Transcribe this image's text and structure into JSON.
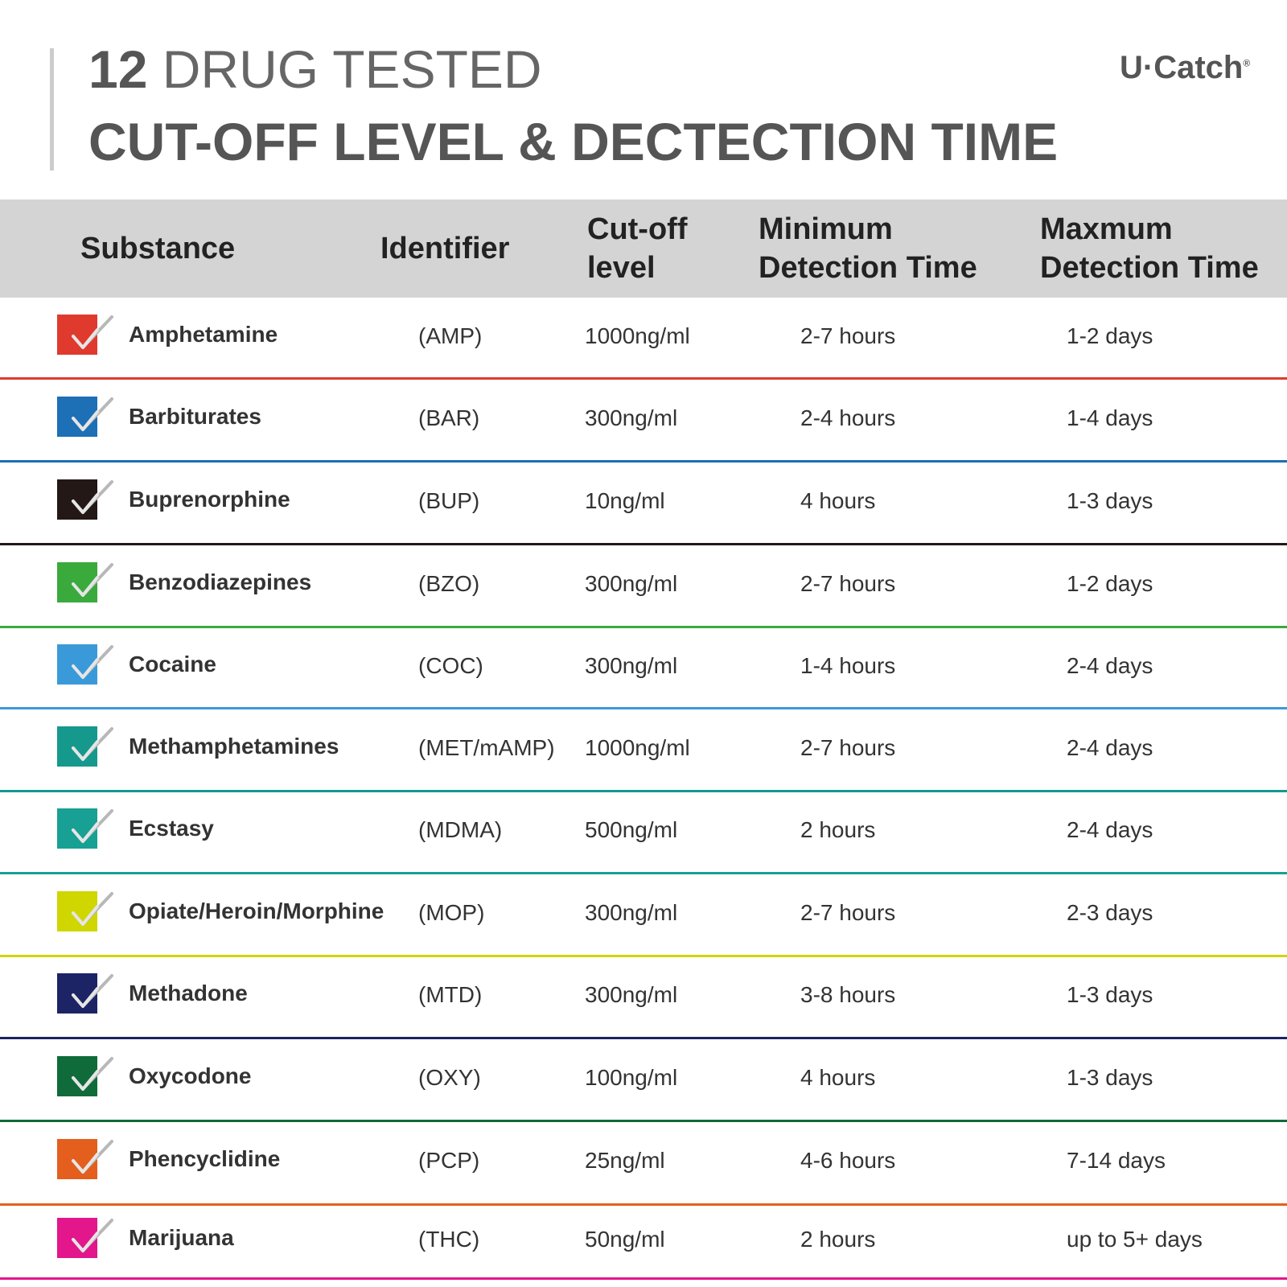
{
  "header": {
    "title_number": "12",
    "title_rest": "DRUG TESTED",
    "subtitle": "CUT-OFF LEVEL & DECTECTION TIME",
    "logo": "U·Catch",
    "logo_mark": "®"
  },
  "table": {
    "columns": [
      "Substance",
      "Identifier",
      "Cut-off level",
      "Minimum Detection Time",
      "Maxmum Detection Time"
    ],
    "rows": [
      {
        "substance": "Amphetamine",
        "identifier": "(AMP)",
        "cutoff": "1000ng/ml",
        "min": "2-7 hours",
        "max": "1-2 days",
        "color": "#e03a2f"
      },
      {
        "substance": "Barbiturates",
        "identifier": "(BAR)",
        "cutoff": "300ng/ml",
        "min": "2-4 hours",
        "max": "1-4 days",
        "color": "#1d6fb6"
      },
      {
        "substance": "Buprenorphine",
        "identifier": "(BUP)",
        "cutoff": "10ng/ml",
        "min": "4 hours",
        "max": "1-3 days",
        "color": "#231815"
      },
      {
        "substance": "Benzodiazepines",
        "identifier": "(BZO)",
        "cutoff": "300ng/ml",
        "min": "2-7 hours",
        "max": "1-2 days",
        "color": "#3aaa3c"
      },
      {
        "substance": "Cocaine",
        "identifier": "(COC)",
        "cutoff": "300ng/ml",
        "min": "1-4 hours",
        "max": "2-4 days",
        "color": "#3a9ad9"
      },
      {
        "substance": "Methamphetamines",
        "identifier": "(MET/mAMP)",
        "cutoff": "1000ng/ml",
        "min": "2-7 hours",
        "max": "2-4 days",
        "color": "#15998d"
      },
      {
        "substance": "Ecstasy",
        "identifier": "(MDMA)",
        "cutoff": "500ng/ml",
        "min": "2 hours",
        "max": "2-4 days",
        "color": "#17a093"
      },
      {
        "substance": "Opiate/Heroin/Morphine",
        "identifier": "(MOP)",
        "cutoff": "300ng/ml",
        "min": "2-7 hours",
        "max": "2-3 days",
        "color": "#cfd600"
      },
      {
        "substance": "Methadone",
        "identifier": "(MTD)",
        "cutoff": "300ng/ml",
        "min": "3-8 hours",
        "max": "1-3 days",
        "color": "#1c2466"
      },
      {
        "substance": "Oxycodone",
        "identifier": "(OXY)",
        "cutoff": "100ng/ml",
        "min": "4 hours",
        "max": "1-3 days",
        "color": "#0f6b3a"
      },
      {
        "substance": "Phencyclidine",
        "identifier": "(PCP)",
        "cutoff": "25ng/ml",
        "min": "4-6 hours",
        "max": "7-14 days",
        "color": "#e45f1d"
      },
      {
        "substance": "Marijuana",
        "identifier": "(THC)",
        "cutoff": "50ng/ml",
        "min": "2 hours",
        "max": "up to 5+ days",
        "color": "#e3168c"
      }
    ]
  }
}
